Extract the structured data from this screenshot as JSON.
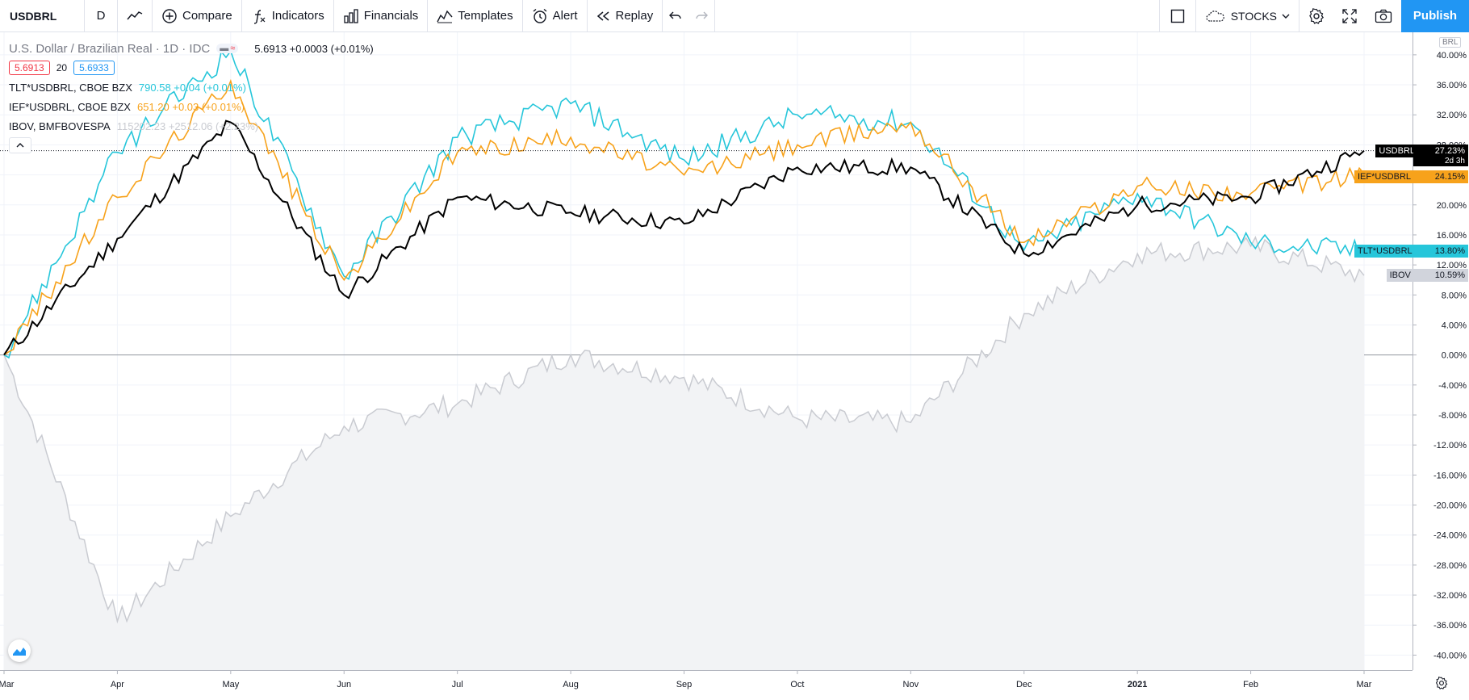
{
  "toolbar": {
    "symbol": "USDBRL",
    "interval": "D",
    "compare": "Compare",
    "indicators": "Indicators",
    "financials": "Financials",
    "templates": "Templates",
    "alert": "Alert",
    "replay": "Replay",
    "layout_name": "STOCKS",
    "publish": "Publish"
  },
  "legend": {
    "main_title": "U.S. Dollar / Brazilian Real · 1D · IDC",
    "main_value": "5.6913 +0.0003 (+0.01%)",
    "bid": "5.6913",
    "spread": "20",
    "ask": "5.6933",
    "series": [
      {
        "label": "TLT*USDBRL, CBOE BZX",
        "value": "790.58 +0.04 (+0.01%)",
        "color": "#26c6da"
      },
      {
        "label": "IEF*USDBRL, CBOE BZX",
        "value": "651.20 +0.03 (+0.01%)",
        "color": "#f7a21b"
      },
      {
        "label": "IBOV, BMFBOVESPA",
        "value": "115202.23 +2512.06 (+2.23%)",
        "color": "#c9cbd1"
      }
    ]
  },
  "price_scale": {
    "currency": "BRL",
    "ticks": [
      "40.00%",
      "36.00%",
      "32.00%",
      "28.00%",
      "24.00%",
      "20.00%",
      "16.00%",
      "12.00%",
      "8.00%",
      "4.00%",
      "0.00%",
      "-4.00%",
      "-8.00%",
      "-12.00%",
      "-16.00%",
      "-20.00%",
      "-24.00%",
      "-28.00%",
      "-32.00%",
      "-36.00%",
      "-40.00%"
    ],
    "tags": [
      {
        "label": "USDBRL",
        "value": "27.23%",
        "extra": "2d 3h",
        "color": "#000000",
        "text": "#ffffff",
        "pct": 27.23
      },
      {
        "label": "IEF*USDBRL",
        "value": "24.15%",
        "color": "#f7a21b",
        "text": "#131722",
        "pct": 24.15
      },
      {
        "label": "TLT*USDBRL",
        "value": "13.80%",
        "color": "#26c6da",
        "text": "#131722",
        "pct": 13.8
      },
      {
        "label": "IBOV",
        "value": "10.59%",
        "color": "#d1d4dc",
        "text": "#131722",
        "pct": 10.59
      }
    ]
  },
  "time_scale": {
    "labels": [
      "Mar",
      "Apr",
      "May",
      "Jun",
      "Jul",
      "Aug",
      "Sep",
      "Oct",
      "Nov",
      "Dec",
      "2021",
      "Feb",
      "Mar"
    ]
  },
  "chart_data": {
    "type": "line",
    "ylim": [
      -42,
      43
    ],
    "x": [
      "Mar",
      "Apr",
      "May",
      "Jun",
      "Jul",
      "Aug",
      "Sep",
      "Oct",
      "Nov",
      "Dec",
      "2021",
      "Feb",
      "Mar"
    ],
    "series": [
      {
        "name": "USDBRL",
        "color": "#000000",
        "values": [
          0,
          15.5,
          31,
          8,
          21,
          19,
          17.5,
          25,
          25,
          13.5,
          20,
          21,
          27.23
        ]
      },
      {
        "name": "IEF*USDBRL",
        "color": "#f7a21b",
        "values": [
          0,
          21,
          36.5,
          10,
          27,
          29,
          24,
          28,
          31,
          15,
          22.5,
          21.5,
          24.15
        ]
      },
      {
        "name": "TLT*USDBRL",
        "color": "#26c6da",
        "values": [
          0,
          27,
          40.5,
          10.5,
          29,
          33.5,
          26,
          32,
          31,
          14,
          21.5,
          15,
          13.8
        ]
      },
      {
        "name": "IBOV",
        "color": "#c9cbd1",
        "values": [
          0,
          -35.5,
          -21.5,
          -9.5,
          -6.5,
          0,
          -3,
          -8.5,
          -9,
          5.5,
          13.5,
          14.5,
          10.59
        ]
      }
    ]
  }
}
